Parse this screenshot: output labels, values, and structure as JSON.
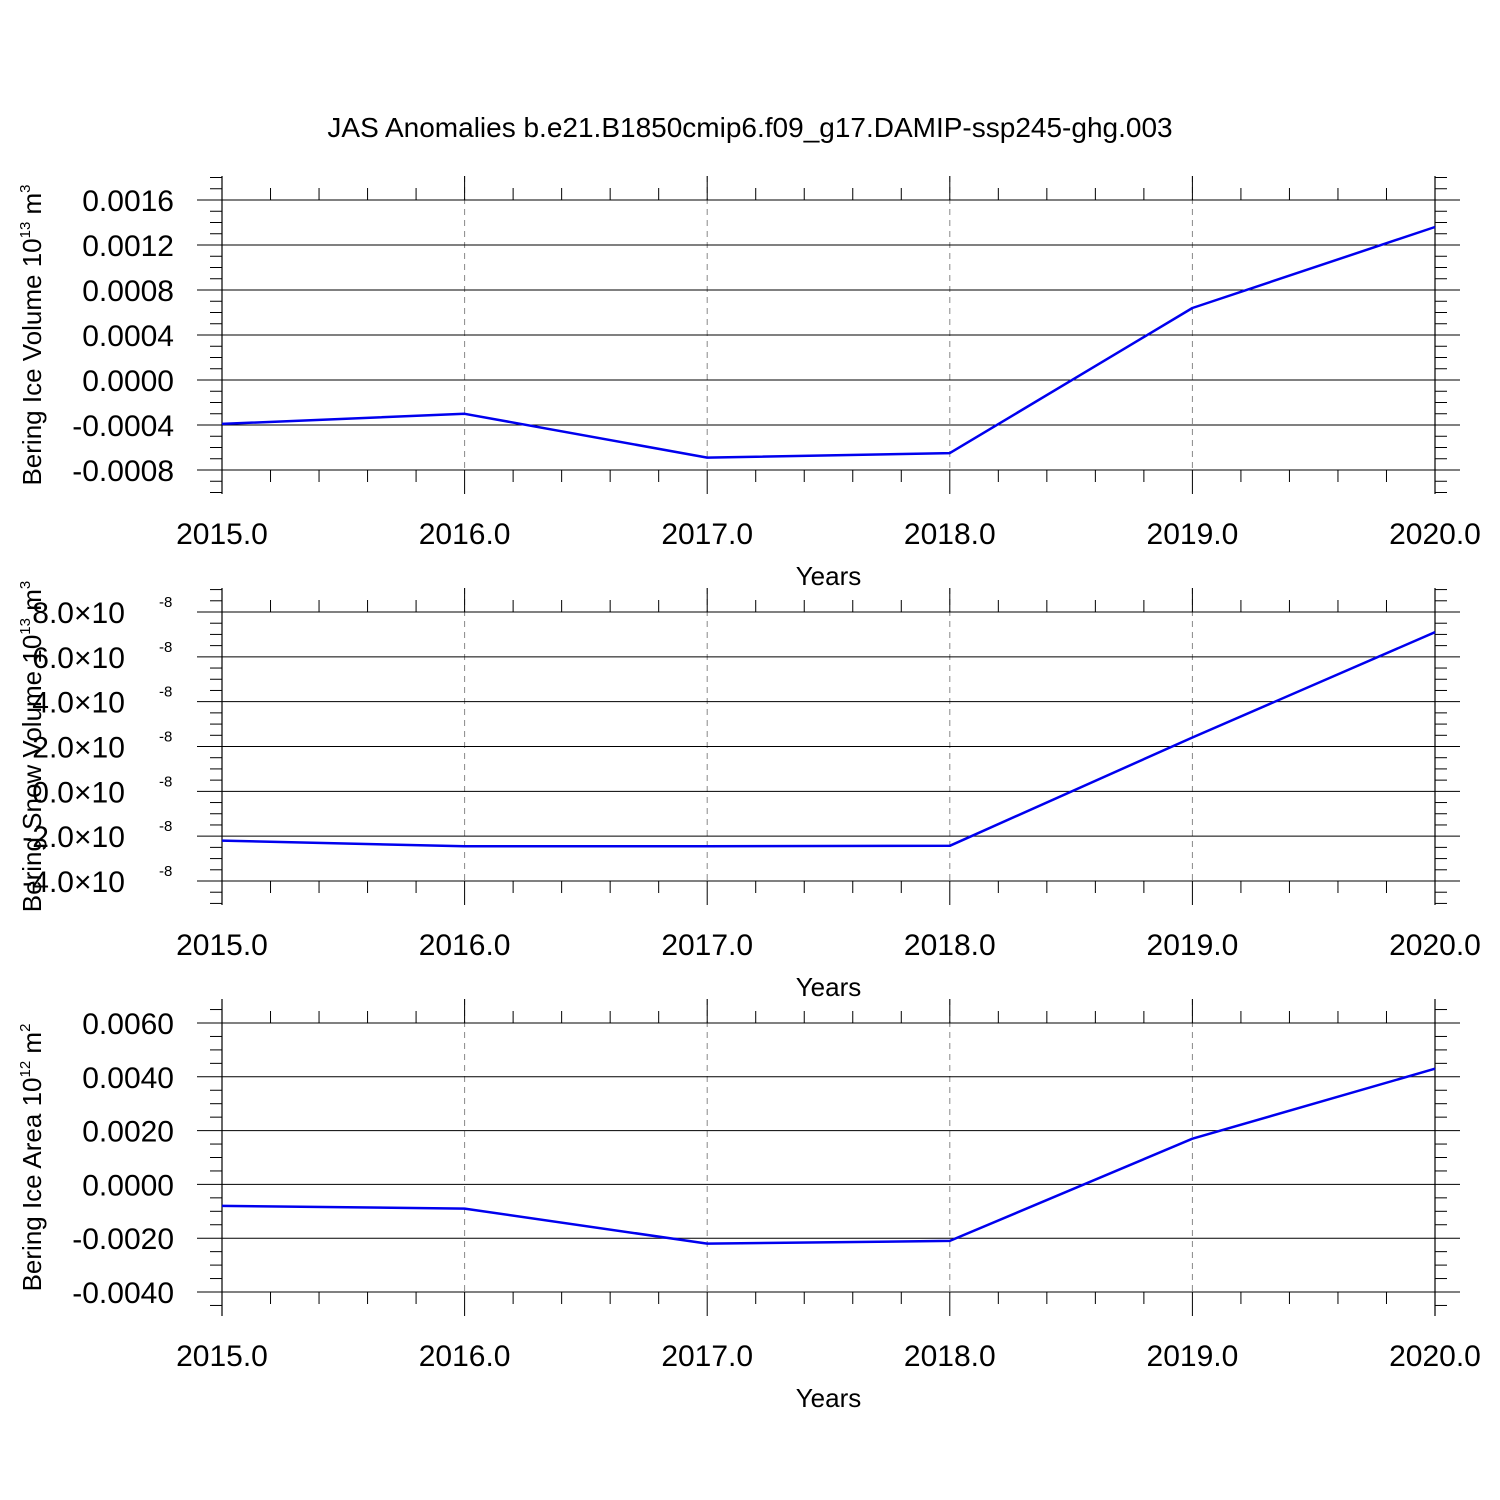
{
  "figure_title": "JAS Anomalies b.e21.B1850cmip6.f09_g17.DAMIP-ssp245-ghg.003",
  "colors": {
    "series": "#0000ee",
    "axis": "#000000",
    "grid": "#888888"
  },
  "chart_data": [
    {
      "type": "line",
      "title": "",
      "xlabel": "Years",
      "ylabel": {
        "text": "Bering Ice Volume 10",
        "sup": "13",
        "unit": " m",
        "unit_sup": "3"
      },
      "x": [
        2015,
        2016,
        2017,
        2018,
        2019,
        2020
      ],
      "x_ticks": [
        "2015.0",
        "2016.0",
        "2017.0",
        "2018.0",
        "2019.0",
        "2020.0"
      ],
      "series": [
        {
          "values": [
            -0.00039,
            -0.0003,
            -0.00069,
            -0.00065,
            0.00064,
            0.00136
          ]
        }
      ],
      "ylim": [
        -0.0008,
        0.0016
      ],
      "y_ticks": [
        {
          "v": -0.0008,
          "label": "-0.0008"
        },
        {
          "v": -0.0004,
          "label": "-0.0004"
        },
        {
          "v": 0.0,
          "label": "0.0000"
        },
        {
          "v": 0.0004,
          "label": "0.0004"
        },
        {
          "v": 0.0008,
          "label": "0.0008"
        },
        {
          "v": 0.0012,
          "label": "0.0012"
        },
        {
          "v": 0.0016,
          "label": "0.0016"
        }
      ],
      "grid": "vertical dashed"
    },
    {
      "type": "line",
      "title": "",
      "xlabel": "Years",
      "ylabel": {
        "text": "Bering Snow Volume 10",
        "sup": "13",
        "unit": " m",
        "unit_sup": "3"
      },
      "x": [
        2015,
        2016,
        2017,
        2018,
        2019,
        2020
      ],
      "x_ticks": [
        "2015.0",
        "2016.0",
        "2017.0",
        "2018.0",
        "2019.0",
        "2020.0"
      ],
      "series": [
        {
          "values": [
            -2.2e-08,
            -2.45e-08,
            -2.45e-08,
            -2.43e-08,
            2.4e-08,
            7.1e-08
          ]
        }
      ],
      "ylim": [
        -4e-08,
        8e-08
      ],
      "y_ticks": [
        {
          "v": -4e-08,
          "label": "-4.0",
          "exp": "-8"
        },
        {
          "v": -2e-08,
          "label": "-2.0",
          "exp": "-8"
        },
        {
          "v": 0.0,
          "label": "0.0",
          "exp": "-8"
        },
        {
          "v": 2e-08,
          "label": "2.0",
          "exp": "-8"
        },
        {
          "v": 4e-08,
          "label": "4.0",
          "exp": "-8"
        },
        {
          "v": 6e-08,
          "label": "6.0",
          "exp": "-8"
        },
        {
          "v": 8e-08,
          "label": "8.0",
          "exp": "-8"
        }
      ],
      "y_tick_multiplier": "×10",
      "grid": "vertical dashed"
    },
    {
      "type": "line",
      "title": "",
      "xlabel": "Years",
      "ylabel": {
        "text": "Bering Ice Area 10",
        "sup": "12",
        "unit": " m",
        "unit_sup": "2"
      },
      "x": [
        2015,
        2016,
        2017,
        2018,
        2019,
        2020
      ],
      "x_ticks": [
        "2015.0",
        "2016.0",
        "2017.0",
        "2018.0",
        "2019.0",
        "2020.0"
      ],
      "series": [
        {
          "values": [
            -0.0008,
            -0.0009,
            -0.0022,
            -0.0021,
            0.0017,
            0.0043
          ]
        }
      ],
      "ylim": [
        -0.004,
        0.006
      ],
      "y_ticks": [
        {
          "v": -0.004,
          "label": "-0.0040"
        },
        {
          "v": -0.002,
          "label": "-0.0020"
        },
        {
          "v": 0.0,
          "label": "0.0000"
        },
        {
          "v": 0.002,
          "label": "0.0020"
        },
        {
          "v": 0.004,
          "label": "0.0040"
        },
        {
          "v": 0.006,
          "label": "0.0060"
        }
      ],
      "grid": "vertical dashed"
    }
  ]
}
